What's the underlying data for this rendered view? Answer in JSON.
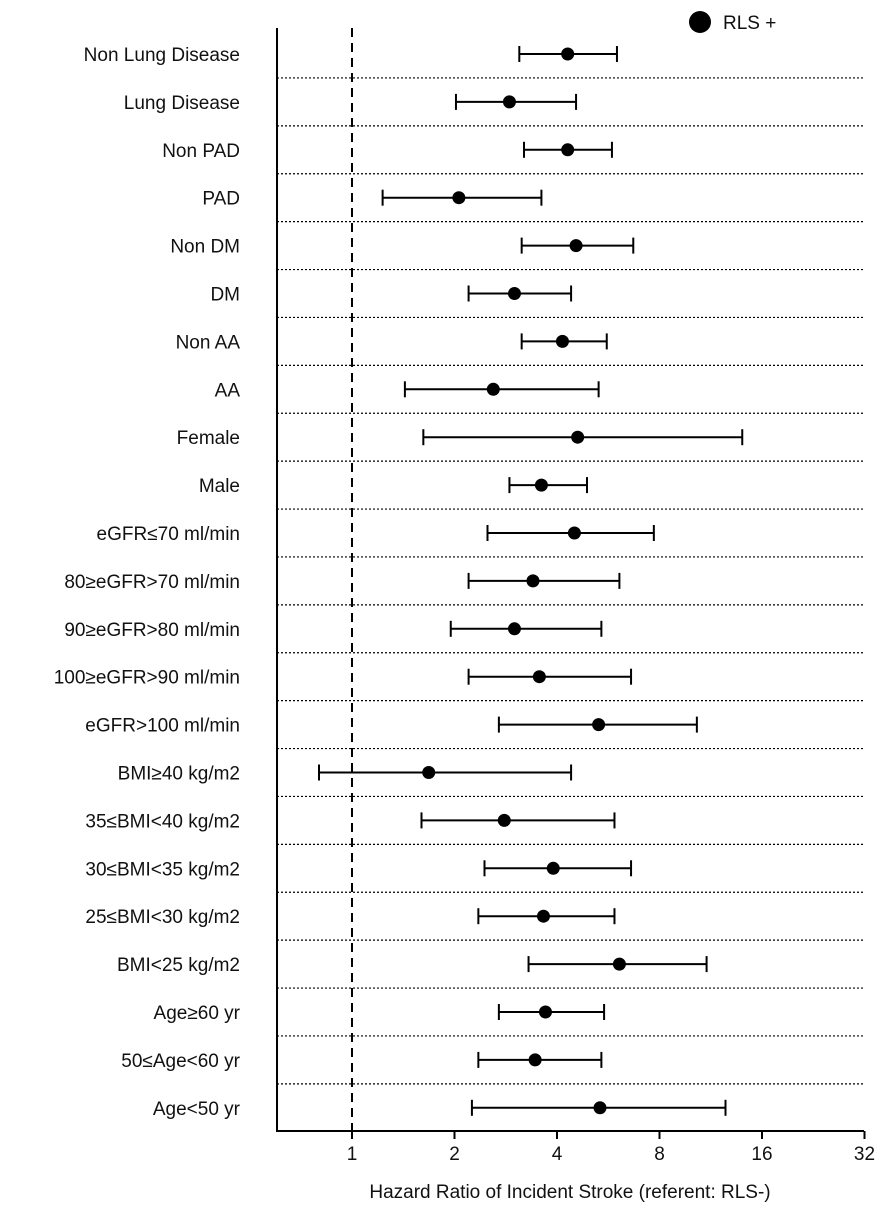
{
  "chart_data": {
    "type": "forest",
    "title": "",
    "xlabel": "Hazard Ratio of Incident Stroke (referent: RLS-)",
    "ylabel": "",
    "x_scale": "log2",
    "xlim": [
      0.66,
      32
    ],
    "x_ticks": [
      1,
      2,
      4,
      8,
      16,
      32
    ],
    "x_tick_labels": [
      "1",
      "2",
      "4",
      "8",
      "16",
      "32"
    ],
    "reference_line": 1,
    "grid": "dotted separators between rows",
    "legend": {
      "entries": [
        "RLS +"
      ],
      "placement": "top-right"
    },
    "series": [
      {
        "name": "RLS +",
        "color": "#000000",
        "points": [
          {
            "label": "Non Lung Disease",
            "hr": 4.3,
            "lo": 3.1,
            "hi": 6.0
          },
          {
            "label": "Lung Disease",
            "hr": 2.9,
            "lo": 2.02,
            "hi": 4.55
          },
          {
            "label": "Non PAD",
            "hr": 4.3,
            "lo": 3.2,
            "hi": 5.8
          },
          {
            "label": "PAD",
            "hr": 2.06,
            "lo": 1.23,
            "hi": 3.6
          },
          {
            "label": "Non DM",
            "hr": 4.55,
            "lo": 3.15,
            "hi": 6.7
          },
          {
            "label": "DM",
            "hr": 3.0,
            "lo": 2.2,
            "hi": 4.4
          },
          {
            "label": "Non AA",
            "hr": 4.15,
            "lo": 3.15,
            "hi": 5.6
          },
          {
            "label": "AA",
            "hr": 2.6,
            "lo": 1.43,
            "hi": 5.3
          },
          {
            "label": "Female",
            "hr": 4.6,
            "lo": 1.62,
            "hi": 14.0
          },
          {
            "label": "Male",
            "hr": 3.6,
            "lo": 2.9,
            "hi": 4.9
          },
          {
            "label": "eGFR≤70 ml/min",
            "hr": 4.5,
            "lo": 2.5,
            "hi": 7.7
          },
          {
            "label": "80≥eGFR>70 ml/min",
            "hr": 3.4,
            "lo": 2.2,
            "hi": 6.1
          },
          {
            "label": "90≥eGFR>80 ml/min",
            "hr": 3.0,
            "lo": 1.95,
            "hi": 5.4
          },
          {
            "label": "100≥eGFR>90 ml/min",
            "hr": 3.55,
            "lo": 2.2,
            "hi": 6.6
          },
          {
            "label": "eGFR>100 ml/min",
            "hr": 5.3,
            "lo": 2.7,
            "hi": 10.3
          },
          {
            "label": "BMI≥40 kg/m2",
            "hr": 1.68,
            "lo": 0.8,
            "hi": 4.4
          },
          {
            "label": "35≤BMI<40 kg/m2",
            "hr": 2.8,
            "lo": 1.6,
            "hi": 5.9
          },
          {
            "label": "30≤BMI<35 kg/m2",
            "hr": 3.9,
            "lo": 2.45,
            "hi": 6.6
          },
          {
            "label": "25≤BMI<30 kg/m2",
            "hr": 3.65,
            "lo": 2.35,
            "hi": 5.9
          },
          {
            "label": "BMI<25 kg/m2",
            "hr": 6.1,
            "lo": 3.3,
            "hi": 11.0
          },
          {
            "label": "Age≥60 yr",
            "hr": 3.7,
            "lo": 2.7,
            "hi": 5.5
          },
          {
            "label": "50≤Age<60 yr",
            "hr": 3.45,
            "lo": 2.35,
            "hi": 5.4
          },
          {
            "label": "Age<50 yr",
            "hr": 5.35,
            "lo": 2.25,
            "hi": 12.5
          }
        ]
      }
    ]
  }
}
